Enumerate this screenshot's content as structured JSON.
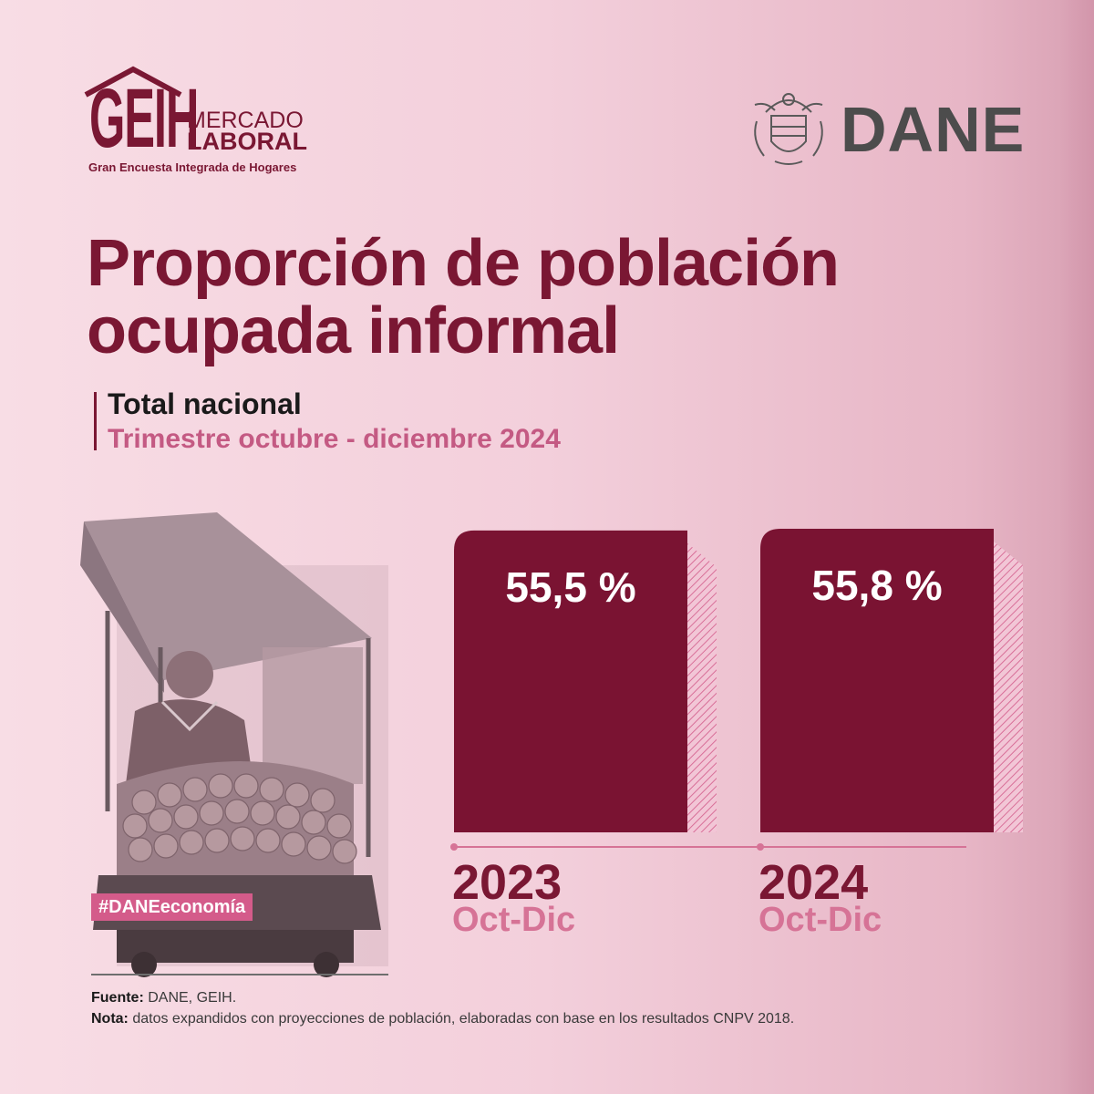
{
  "brand": {
    "geih_letters": "GEIH",
    "geih_line1": "MERCADO",
    "geih_line2": "LABORAL",
    "geih_sub": "Gran Encuesta Integrada de Hogares",
    "dane_name": "DANE"
  },
  "header": {
    "title_line1": "Proporción de población",
    "title_line2": "ocupada informal",
    "subtitle1": "Total nacional",
    "subtitle2": "Trimestre octubre - diciembre 2024"
  },
  "photo": {
    "hashtag": "#DANEeconomía"
  },
  "footer": {
    "source_label": "Fuente:",
    "source_text": " DANE, GEIH.",
    "note_label": "Nota:",
    "note_text": " datos expandidos con proyecciones de población, elaboradas con base en los resultados CNPV 2018."
  },
  "colors": {
    "bar": "#7a1332",
    "bar_shadow": "#d86f98",
    "accent": "#7a1733",
    "pink": "#d67396"
  },
  "chart_data": {
    "type": "bar",
    "title": "Proporción de población ocupada informal",
    "categories": [
      "2023",
      "2024"
    ],
    "category_sublabels": [
      "Oct-Dic",
      "Oct-Dic"
    ],
    "values": [
      55.5,
      55.8
    ],
    "value_labels": [
      "55,5 %",
      "55,8 %"
    ],
    "unit": "%",
    "ylim": [
      0,
      60
    ],
    "xlabel": "",
    "ylabel": ""
  }
}
